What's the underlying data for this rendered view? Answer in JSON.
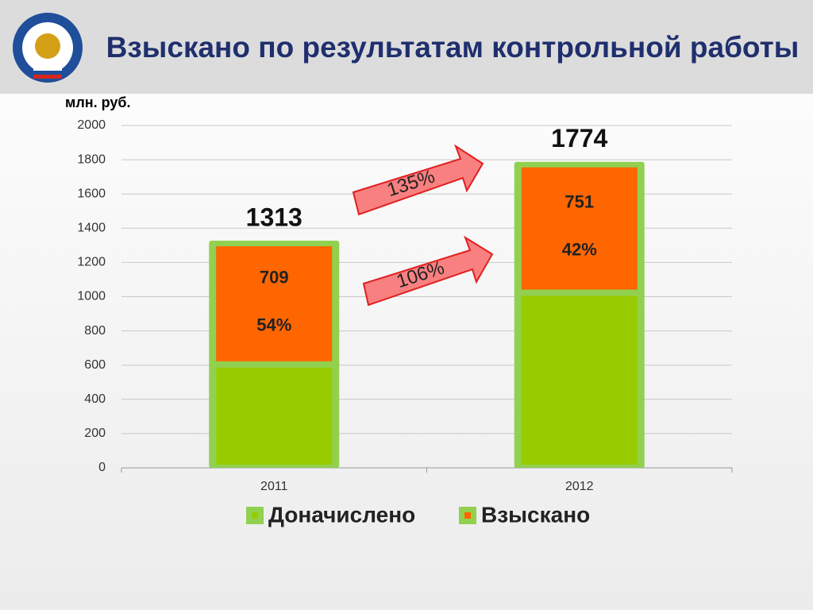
{
  "chart_data": {
    "type": "stacked_bar",
    "title": "Взыскано по результатам контрольной работы",
    "y_label": "млн. руб.",
    "categories": [
      "2011",
      "2012"
    ],
    "series": [
      {
        "name": "Доначислено",
        "color": "#99cc00",
        "values": [
          604,
          1023
        ]
      },
      {
        "name": "Взыскано",
        "color": "#ff6600",
        "values": [
          709,
          751
        ],
        "percent_labels": [
          "54%",
          "42%"
        ]
      }
    ],
    "totals": [
      1313,
      1774
    ],
    "annotations": [
      "135%",
      "106%"
    ],
    "ylim": [
      0,
      2000
    ],
    "yticks": [
      0,
      200,
      400,
      600,
      800,
      1000,
      1200,
      1400,
      1600,
      1800,
      2000
    ],
    "grid": true
  }
}
